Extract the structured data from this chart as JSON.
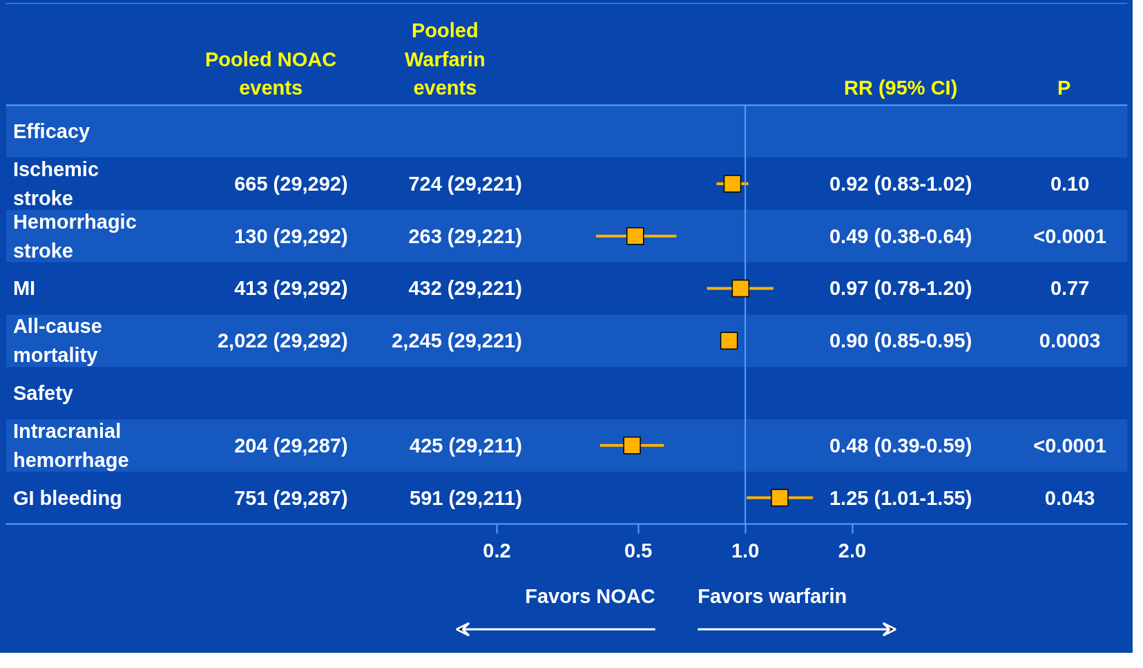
{
  "chart_data": {
    "type": "scatter",
    "orientation": "horizontal",
    "log": "x",
    "marker": "square",
    "grid": false,
    "tick_labels": "x",
    "categories": [
      "Efficacy",
      "Ischemic\nstroke",
      "Hemorrhagic\nstroke",
      "MI",
      "All-cause\nmortality",
      "Safety",
      "Intracranial\nhemorrhage",
      "GI bleeding"
    ],
    "series": [
      {
        "color": "#ffb300",
        "values": [
          null,
          0.92,
          0.49,
          0.97,
          0.9,
          null,
          0.48,
          1.25
        ],
        "errors": [
          null,
          [
            0.83,
            1.02
          ],
          [
            0.38,
            0.64
          ],
          [
            0.78,
            1.2
          ],
          [
            0.85,
            0.95
          ],
          null,
          [
            0.39,
            0.59
          ],
          [
            1.01,
            1.55
          ]
        ]
      }
    ],
    "xlim": [
      0.0083,
      11.9
    ],
    "xticks": [
      0.2,
      0.5,
      {
        "value": 1,
        "label": "1.0"
      },
      {
        "value": 2,
        "label": "2.0"
      }
    ],
    "ref_lines": [
      {
        "axis": "x",
        "value": 1,
        "color": "#5aa0ff"
      }
    ],
    "bands": [
      {
        "axis": "y",
        "from": "Efficacy",
        "to": "Efficacy",
        "color": "#1558c0"
      },
      {
        "axis": "y",
        "from": "Hemorrhagic\nstroke",
        "to": "Hemorrhagic\nstroke",
        "color": "#1558c0"
      },
      {
        "axis": "y",
        "from": "All-cause\nmortality",
        "to": "All-cause\nmortality",
        "color": "#1558c0"
      },
      {
        "axis": "y",
        "from": "Intracranial\nhemorrhage",
        "to": "Intracranial\nhemorrhage",
        "color": "#1558c0"
      }
    ],
    "annotations": [
      "Pooled NOAC\nevents",
      "Pooled\nWarfarin\nevents",
      "RR (95% CI)",
      "P",
      "665 (29,292)",
      "724 (29,221)",
      "0.92 (0.83-1.02)",
      "0.10",
      "130 (29,292)",
      "263 (29,221)",
      "0.49 (0.38-0.64)",
      "<0.0001",
      "413 (29,292)",
      "432 (29,221)",
      "0.97 (0.78-1.20)",
      "0.77",
      "2,022 (29,292)",
      "2,245 (29,221)",
      "0.90 (0.85-0.95)",
      "0.0003",
      "204 (29,287)",
      "425 (29,211)",
      "0.48 (0.39-0.59)",
      "<0.0001",
      "751 (29,287)",
      "591 (29,211)",
      "1.25 (1.01-1.55)",
      "0.043",
      "Favors NOAC",
      "Favors warfarin"
    ]
  }
}
